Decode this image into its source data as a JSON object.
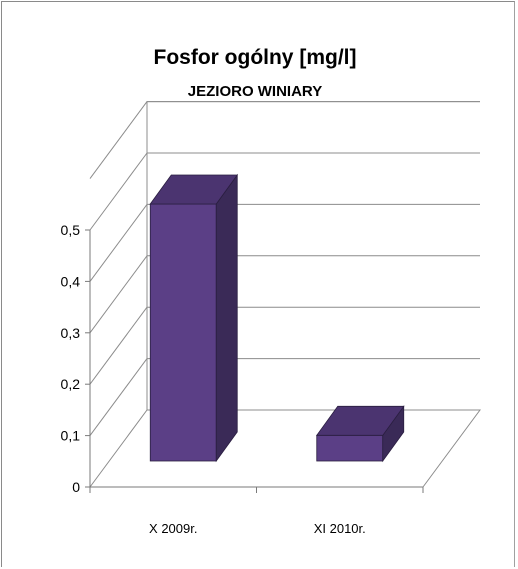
{
  "chart_data": {
    "type": "bar",
    "title": "Fosfor ogólny [mg/l]",
    "subtitle": "JEZIORO WINIARY",
    "categories": [
      "X 2009r.",
      "XI 2010r."
    ],
    "values": [
      0.5,
      0.05
    ],
    "ylim": [
      0,
      0.5
    ],
    "yticks": [
      "0",
      "0,1",
      "0,2",
      "0,3",
      "0,4",
      "0,5"
    ],
    "grid": true,
    "legend": "none",
    "bar_color": "#5b3f86",
    "bar_side_color": "#3a2a57",
    "bar_top_color": "#4b3470"
  }
}
